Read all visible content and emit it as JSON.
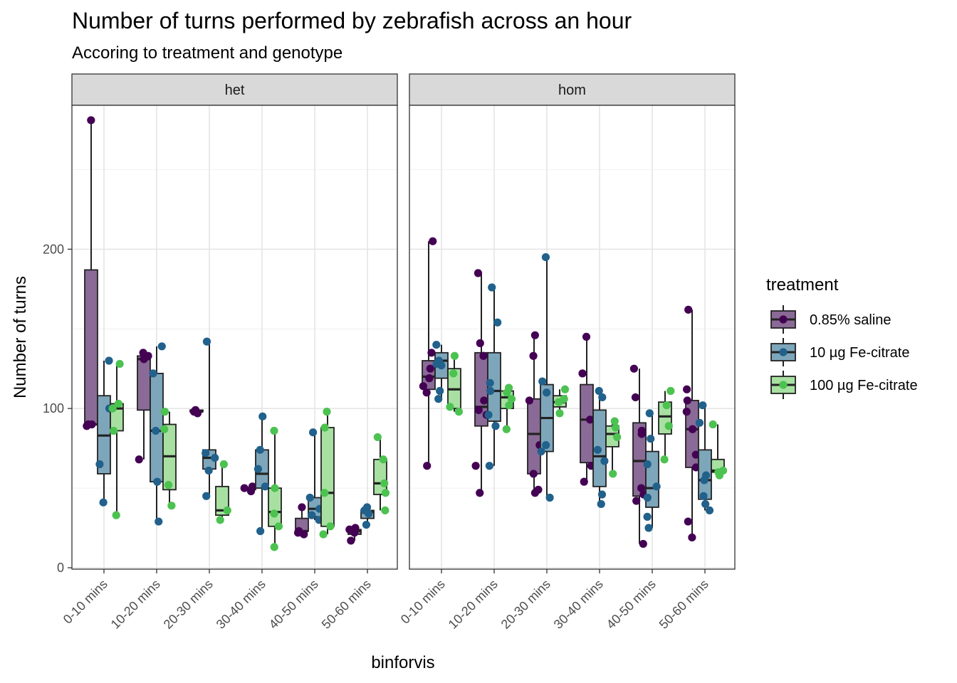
{
  "chart_data": {
    "type": "box",
    "title": "Number of turns performed by zebrafish across an hour",
    "subtitle": "Accoring to treatment and genotype",
    "xlabel": "binforvis",
    "ylabel": "Number of turns",
    "ylim": [
      0,
      285
    ],
    "yticks": [
      0,
      100,
      200
    ],
    "categories": [
      "0-10 mins",
      "10-20 mins",
      "20-30 mins",
      "30-40 mins",
      "40-50 mins",
      "50-60 mins"
    ],
    "facets": [
      "het",
      "hom"
    ],
    "legend": {
      "title": "treatment",
      "position": "right",
      "items": [
        {
          "label": "0.85% saline",
          "fill": "#8a6a96",
          "point": "#440154"
        },
        {
          "label": "10 µg Fe-citrate",
          "fill": "#7ea6bb",
          "point": "#21618c"
        },
        {
          "label": "100 µg Fe-citrate",
          "fill": "#a8e0a2",
          "point": "#4cc250"
        }
      ]
    },
    "panels": [
      {
        "facet": "het",
        "series": [
          {
            "treatment": "0.85% saline",
            "boxes": [
              {
                "category": "0-10 mins",
                "min": 89,
                "q1": 90,
                "median": 90,
                "q3": 187,
                "max": 281,
                "points": [
                  281,
                  90,
                  89,
                  90
                ]
              },
              {
                "category": "10-20 mins",
                "min": 68,
                "q1": 99,
                "median": 131,
                "q3": 133,
                "max": 135,
                "points": [
                  135,
                  131,
                  68,
                  133
                ]
              },
              {
                "category": "20-30 mins",
                "min": 97,
                "q1": 98,
                "median": 98,
                "q3": 99,
                "max": 99,
                "points": [
                  97,
                  99,
                  98
                ]
              },
              {
                "category": "30-40 mins",
                "min": 48,
                "q1": 49,
                "median": 50,
                "q3": 50,
                "max": 51,
                "points": [
                  51,
                  48,
                  50
                ]
              },
              {
                "category": "40-50 mins",
                "min": 21,
                "q1": 23,
                "median": 23,
                "q3": 31,
                "max": 38,
                "points": [
                  38,
                  23,
                  21,
                  22
                ]
              },
              {
                "category": "50-60 mins",
                "min": 17,
                "q1": 21,
                "median": 23,
                "q3": 24,
                "max": 25,
                "points": [
                  25,
                  22,
                  17,
                  24
                ]
              }
            ]
          },
          {
            "treatment": "10 µg Fe-citrate",
            "boxes": [
              {
                "category": "0-10 mins",
                "min": 41,
                "q1": 59,
                "median": 83,
                "q3": 108,
                "max": 130,
                "points": [
                  130,
                  100,
                  65,
                  41
                ]
              },
              {
                "category": "10-20 mins",
                "min": 29,
                "q1": 54,
                "median": 86,
                "q3": 122,
                "max": 139,
                "points": [
                  139,
                  122,
                  86,
                  54,
                  29
                ]
              },
              {
                "category": "20-30 mins",
                "min": 45,
                "q1": 62,
                "median": 69,
                "q3": 74,
                "max": 142,
                "points": [
                  142,
                  72,
                  69,
                  61,
                  45
                ]
              },
              {
                "category": "30-40 mins",
                "min": 23,
                "q1": 50,
                "median": 59,
                "q3": 74,
                "max": 95,
                "points": [
                  95,
                  74,
                  62,
                  51,
                  23
                ]
              },
              {
                "category": "40-50 mins",
                "min": 30,
                "q1": 32,
                "median": 37,
                "q3": 44,
                "max": 85,
                "points": [
                  85,
                  44,
                  37,
                  33,
                  30
                ]
              },
              {
                "category": "50-60 mins",
                "min": 27,
                "q1": 31,
                "median": 35,
                "q3": 36,
                "max": 38,
                "points": [
                  38,
                  36,
                  34,
                  27
                ]
              }
            ]
          },
          {
            "treatment": "100 µg Fe-citrate",
            "boxes": [
              {
                "category": "0-10 mins",
                "min": 33,
                "q1": 86,
                "median": 100,
                "q3": 103,
                "max": 128,
                "points": [
                  128,
                  103,
                  100,
                  86,
                  33
                ]
              },
              {
                "category": "10-20 mins",
                "min": 39,
                "q1": 49,
                "median": 70,
                "q3": 90,
                "max": 98,
                "points": [
                  98,
                  87,
                  52,
                  39
                ]
              },
              {
                "category": "20-30 mins",
                "min": 30,
                "q1": 33,
                "median": 36,
                "q3": 51,
                "max": 65,
                "points": [
                  65,
                  36,
                  30
                ]
              },
              {
                "category": "30-40 mins",
                "min": 13,
                "q1": 26,
                "median": 35,
                "q3": 50,
                "max": 86,
                "points": [
                  86,
                  50,
                  34,
                  26,
                  13
                ]
              },
              {
                "category": "40-50 mins",
                "min": 21,
                "q1": 26,
                "median": 47,
                "q3": 88,
                "max": 98,
                "points": [
                  98,
                  88,
                  47,
                  26,
                  21
                ]
              },
              {
                "category": "50-60 mins",
                "min": 36,
                "q1": 46,
                "median": 53,
                "q3": 68,
                "max": 82,
                "points": [
                  82,
                  68,
                  53,
                  47,
                  36
                ]
              }
            ]
          }
        ]
      },
      {
        "facet": "hom",
        "series": [
          {
            "treatment": "0.85% saline",
            "boxes": [
              {
                "category": "0-10 mins",
                "min": 64,
                "q1": 112,
                "median": 120,
                "q3": 130,
                "max": 205,
                "points": [
                  205,
                  135,
                  125,
                  119,
                  114,
                  110,
                  64
                ]
              },
              {
                "category": "10-20 mins",
                "min": 47,
                "q1": 89,
                "median": 101,
                "q3": 135,
                "max": 185,
                "points": [
                  185,
                  141,
                  133,
                  105,
                  99,
                  96,
                  64,
                  47
                ]
              },
              {
                "category": "20-30 mins",
                "min": 47,
                "q1": 59,
                "median": 84,
                "q3": 106,
                "max": 146,
                "points": [
                  146,
                  133,
                  105,
                  77,
                  59,
                  49,
                  47
                ]
              },
              {
                "category": "30-40 mins",
                "min": 54,
                "q1": 66,
                "median": 93,
                "q3": 115,
                "max": 145,
                "points": [
                  145,
                  122,
                  93,
                  64,
                  54
                ]
              },
              {
                "category": "40-50 mins",
                "min": 15,
                "q1": 45,
                "median": 67,
                "q3": 91,
                "max": 125,
                "points": [
                  125,
                  107,
                  86,
                  84,
                  50,
                  46,
                  42,
                  15
                ]
              },
              {
                "category": "50-60 mins",
                "min": 19,
                "q1": 63,
                "median": 87,
                "q3": 105,
                "max": 162,
                "points": [
                  162,
                  112,
                  105,
                  98,
                  87,
                  71,
                  63,
                  29,
                  19
                ]
              }
            ]
          },
          {
            "treatment": "10 µg Fe-citrate",
            "boxes": [
              {
                "category": "0-10 mins",
                "min": 106,
                "q1": 119,
                "median": 130,
                "q3": 135,
                "max": 140,
                "points": [
                  140,
                  130,
                  127,
                  128,
                  111,
                  106
                ]
              },
              {
                "category": "10-20 mins",
                "min": 64,
                "q1": 92,
                "median": 111,
                "q3": 135,
                "max": 176,
                "points": [
                  176,
                  154,
                  116,
                  111,
                  96,
                  89,
                  64
                ]
              },
              {
                "category": "20-30 mins",
                "min": 44,
                "q1": 73,
                "median": 94,
                "q3": 115,
                "max": 195,
                "points": [
                  195,
                  117,
                  110,
                  77,
                  73,
                  44
                ]
              },
              {
                "category": "30-40 mins",
                "min": 40,
                "q1": 51,
                "median": 70,
                "q3": 99,
                "max": 111,
                "points": [
                  111,
                  107,
                  74,
                  67,
                  46,
                  40
                ]
              },
              {
                "category": "40-50 mins",
                "min": 25,
                "q1": 38,
                "median": 50,
                "q3": 73,
                "max": 97,
                "points": [
                  97,
                  81,
                  65,
                  51,
                  44,
                  32,
                  25
                ]
              },
              {
                "category": "50-60 mins",
                "min": 36,
                "q1": 43,
                "median": 55,
                "q3": 74,
                "max": 102,
                "points": [
                  102,
                  91,
                  58,
                  55,
                  45,
                  40,
                  36
                ]
              }
            ]
          },
          {
            "treatment": "100 µg Fe-citrate",
            "boxes": [
              {
                "category": "0-10 mins",
                "min": 98,
                "q1": 100,
                "median": 112,
                "q3": 125,
                "max": 133,
                "points": [
                  133,
                  122,
                  101,
                  98
                ]
              },
              {
                "category": "10-20 mins",
                "min": 87,
                "q1": 100,
                "median": 107,
                "q3": 111,
                "max": 113,
                "points": [
                  113,
                  110,
                  106,
                  102,
                  87
                ]
              },
              {
                "category": "20-30 mins",
                "min": 97,
                "q1": 101,
                "median": 104,
                "q3": 108,
                "max": 112,
                "points": [
                  112,
                  106,
                  104,
                  97
                ]
              },
              {
                "category": "30-40 mins",
                "min": 59,
                "q1": 76,
                "median": 84,
                "q3": 89,
                "max": 92,
                "points": [
                  92,
                  88,
                  82,
                  59
                ]
              },
              {
                "category": "40-50 mins",
                "min": 68,
                "q1": 84,
                "median": 95,
                "q3": 104,
                "max": 111,
                "points": [
                  111,
                  102,
                  89,
                  68
                ]
              },
              {
                "category": "50-60 mins",
                "min": 58,
                "q1": 60,
                "median": 61,
                "q3": 68,
                "max": 90,
                "points": [
                  90,
                  61,
                  60,
                  58
                ]
              }
            ]
          }
        ]
      }
    ]
  }
}
